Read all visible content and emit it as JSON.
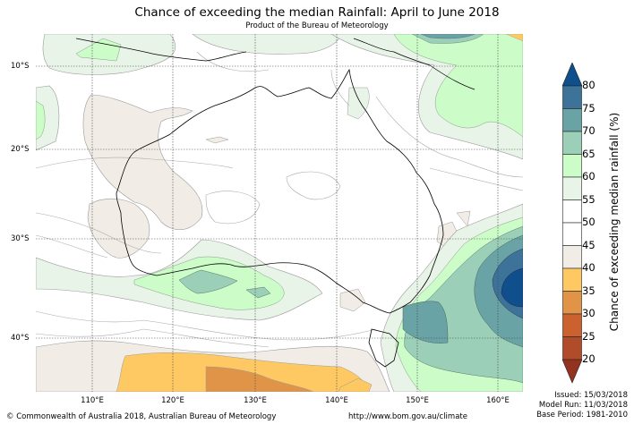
{
  "header": {
    "title": "Chance of exceeding the median Rainfall: April to June 2018",
    "subtitle": "Product of the Bureau of Meteorology"
  },
  "map": {
    "latitude_labels": [
      "10°S",
      "20°S",
      "30°S",
      "40°S"
    ],
    "longitude_labels": [
      "110°E",
      "120°E",
      "130°E",
      "140°E",
      "150°E",
      "160°E"
    ],
    "region": "Australia and surrounding seas",
    "highlights": [
      {
        "area": "Tasman Sea east of NSW/Victoria",
        "range": "above 80%"
      },
      {
        "area": "Southern Ocean south of WA",
        "range": "25-40%"
      },
      {
        "area": "Great Australian Bight",
        "range": "65-70%"
      }
    ]
  },
  "colorbar": {
    "title": "Chance of exceeding median rainfall (%)",
    "ticks": [
      "80",
      "75",
      "70",
      "65",
      "60",
      "55",
      "50",
      "45",
      "40",
      "35",
      "30",
      "25",
      "20"
    ],
    "levels": [
      {
        "range": ">80",
        "color": "#0f4f8c"
      },
      {
        "range": "75-80",
        "color": "#3e7399"
      },
      {
        "range": "70-75",
        "color": "#6aa3a6"
      },
      {
        "range": "65-70",
        "color": "#9ccfb8"
      },
      {
        "range": "60-65",
        "color": "#ccfcc8"
      },
      {
        "range": "55-60",
        "color": "#e8f4e8"
      },
      {
        "range": "50-55",
        "color": "#ffffff"
      },
      {
        "range": "45-50",
        "color": "#ffffff"
      },
      {
        "range": "40-45",
        "color": "#f1ede6"
      },
      {
        "range": "35-40",
        "color": "#fec963"
      },
      {
        "range": "30-35",
        "color": "#e09448"
      },
      {
        "range": "25-30",
        "color": "#cc6130"
      },
      {
        "range": "20-25",
        "color": "#b04c2a"
      },
      {
        "range": "<20",
        "color": "#933221"
      }
    ]
  },
  "footer": {
    "copyright": "© Commonwealth of Australia 2018, Australian Bureau of Meteorology",
    "url": "http://www.bom.gov.au/climate",
    "issued": "Issued: 15/03/2018",
    "model_run": "Model Run: 11/03/2018",
    "base_period": "Base Period: 1981-2010"
  }
}
